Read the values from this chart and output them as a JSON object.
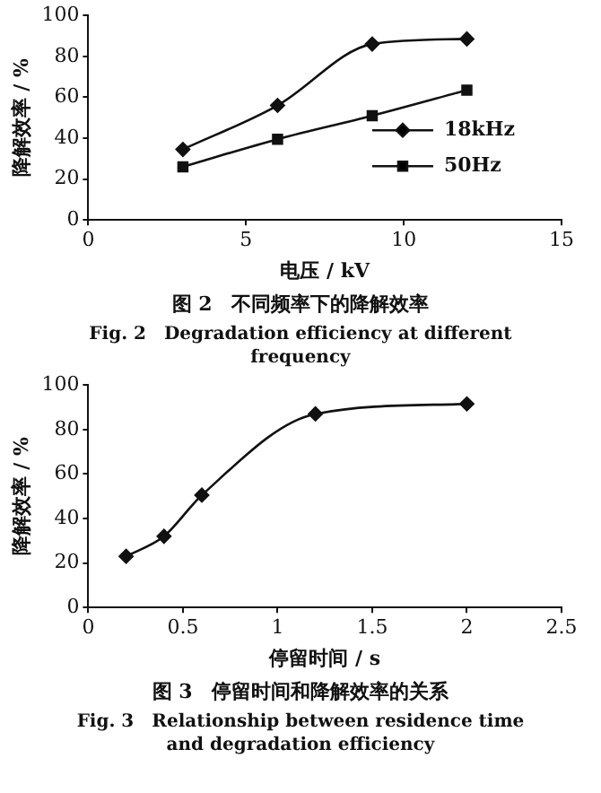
{
  "chart_data": [
    {
      "type": "line",
      "title": "图 2　不同频率下的降解效率",
      "subtitle": "Fig. 2　Degradation efficiency at different frequency",
      "xlabel": "电压 / kV",
      "ylabel": "降解效率 / %",
      "x": [
        3,
        6,
        9,
        12
      ],
      "xlim": [
        0,
        15
      ],
      "xticks": [
        0,
        5,
        10,
        15
      ],
      "ylim": [
        0,
        100
      ],
      "yticks": [
        0,
        20,
        40,
        60,
        80,
        100
      ],
      "legend": "bottom right",
      "series": [
        {
          "name": "18kHz",
          "color": "#111111",
          "marker": "diamond",
          "values": [
            34.5,
            56,
            86,
            88.5
          ]
        },
        {
          "name": "50Hz",
          "color": "#111111",
          "marker": "square",
          "values": [
            26,
            39.5,
            51,
            63.5
          ]
        }
      ]
    },
    {
      "type": "line",
      "title": "图 3　停留时间和降解效率的关系",
      "subtitle": "Fig. 3　Relationship between residence time and degradation efficiency",
      "xlabel": "停留时间 / s",
      "ylabel": "降解效率 / %",
      "x": [
        0.2,
        0.4,
        0.6,
        1.2,
        2
      ],
      "xlim": [
        0,
        2.5
      ],
      "xticks": [
        0,
        0.5,
        1,
        1.5,
        2,
        2.5
      ],
      "ylim": [
        0,
        100
      ],
      "yticks": [
        0,
        20,
        40,
        60,
        80,
        100
      ],
      "marker": "diamond",
      "color": "#111111",
      "values": [
        23,
        32,
        50.5,
        87,
        91.5
      ]
    }
  ]
}
